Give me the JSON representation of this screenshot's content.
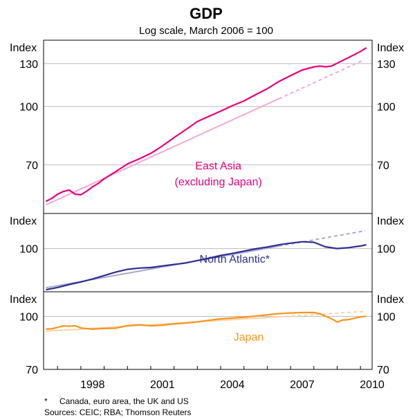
{
  "chart_data": {
    "type": "line",
    "title": "GDP",
    "subtitle": "Log scale, March 2006 = 100",
    "x_ticks": [
      "1998",
      "2001",
      "2004",
      "2007",
      "2010"
    ],
    "xlim": [
      1996.4,
      2010.5
    ],
    "axis_unit_label": "Index",
    "panels": [
      {
        "name": "east-asia",
        "ylim": [
          52,
          150
        ],
        "y_ticks": [
          {
            "value": 130,
            "label": "130"
          },
          {
            "value": 100,
            "label": "100"
          },
          {
            "value": 70,
            "label": "70"
          }
        ],
        "show_index_label": true,
        "annotation": [
          "East Asia",
          "(excluding Japan)"
        ],
        "annotation_at": [
          2003.9,
          68
        ],
        "color": "#e6007e",
        "trend_color": "#f5a8d2",
        "series": {
          "name": "East Asia (excluding Japan)",
          "x": [
            1996.5,
            1996.75,
            1997,
            1997.25,
            1997.5,
            1997.75,
            1998,
            1998.25,
            1998.5,
            1998.75,
            1999,
            1999.5,
            2000,
            2000.5,
            2001,
            2001.5,
            2002,
            2002.5,
            2003,
            2003.5,
            2004,
            2004.5,
            2005,
            2005.5,
            2006,
            2006.5,
            2007,
            2007.5,
            2008,
            2008.25,
            2008.5,
            2008.75,
            2009,
            2009.5,
            2010,
            2010.25
          ],
          "y": [
            56,
            57,
            58.5,
            59.5,
            60,
            58.5,
            58.3,
            59.6,
            61.2,
            62.5,
            64.3,
            67.2,
            70.4,
            72.6,
            75.1,
            78.6,
            82.7,
            86.8,
            91.2,
            94.2,
            97.2,
            100.5,
            103.5,
            107.5,
            111.5,
            116.5,
            120.8,
            125,
            127.4,
            128,
            127.5,
            128,
            130.3,
            135,
            140,
            143.2
          ]
        },
        "trend": {
          "name": "East Asia trend",
          "x": [
            1996.5,
            2010.1
          ],
          "y": [
            54.8,
            132.5
          ]
        }
      },
      {
        "name": "north-atlantic",
        "ylim": [
          86,
          113
        ],
        "y_ticks": [
          {
            "value": 100,
            "label": "100"
          }
        ],
        "show_index_label": true,
        "annotation": [
          "North Atlantic*"
        ],
        "annotation_at": [
          2004.6,
          95.2
        ],
        "color": "#2e2e8f",
        "trend_color": "#a9a9d3",
        "series": {
          "name": "North Atlantic",
          "x": [
            1996.5,
            1997,
            1997.5,
            1998,
            1998.5,
            1999,
            1999.5,
            2000,
            2000.5,
            2001,
            2001.5,
            2002,
            2002.5,
            2003,
            2003.5,
            2004,
            2004.5,
            2005,
            2005.5,
            2006,
            2006.5,
            2007,
            2007.5,
            2008,
            2008.5,
            2009,
            2009.5,
            2010,
            2010.25
          ],
          "y": [
            86.6,
            87.3,
            88.2,
            89,
            89.9,
            91,
            92.1,
            93,
            93.4,
            93.6,
            94.1,
            94.6,
            95.1,
            95.9,
            96.7,
            97.6,
            98.3,
            99.1,
            99.9,
            100.5,
            101.3,
            101.9,
            102.4,
            102.2,
            100.6,
            100,
            100.3,
            100.9,
            101.3
          ]
        },
        "trend": {
          "name": "North Atlantic trend",
          "x": [
            1996.5,
            2010.2
          ],
          "y": [
            87.2,
            106.4
          ]
        }
      },
      {
        "name": "japan",
        "ylim": [
          70,
          118
        ],
        "y_ticks": [
          {
            "value": 100,
            "label": "100"
          },
          {
            "value": 70,
            "label": "70"
          }
        ],
        "show_index_label": true,
        "annotation": [
          "Japan"
        ],
        "annotation_at": [
          2005.2,
          85
        ],
        "color": "#f7941d",
        "trend_color": "#fcd3a8",
        "series": {
          "name": "Japan",
          "x": [
            1996.5,
            1996.75,
            1997,
            1997.25,
            1997.5,
            1997.75,
            1998,
            1998.5,
            1999,
            1999.5,
            2000,
            2000.5,
            2001,
            2001.5,
            2002,
            2002.5,
            2003,
            2003.5,
            2004,
            2004.5,
            2005,
            2005.5,
            2006,
            2006.5,
            2007,
            2007.5,
            2008,
            2008.25,
            2008.5,
            2008.75,
            2009,
            2009.25,
            2009.5,
            2010,
            2010.25
          ],
          "y": [
            91.8,
            92,
            92.9,
            93.8,
            93.6,
            93.9,
            92.5,
            91.8,
            92.2,
            92.4,
            94,
            94.5,
            93.8,
            94.3,
            95.1,
            95.6,
            96.4,
            97.4,
            98.4,
            98.9,
            99.5,
            100.2,
            101.1,
            101.9,
            102.3,
            102.6,
            102.7,
            101.8,
            100.2,
            98.5,
            96.3,
            97.6,
            97.9,
            99.7,
            100.1
          ]
        },
        "trend": {
          "name": "Japan trend",
          "x": [
            1996.5,
            2010.2
          ],
          "y": [
            90.5,
            103.4
          ]
        }
      }
    ],
    "footnote_marker": "*",
    "footnote": "Canada, euro area, the UK and US",
    "sources": "Sources: CEIC; RBA; Thomson Reuters"
  }
}
